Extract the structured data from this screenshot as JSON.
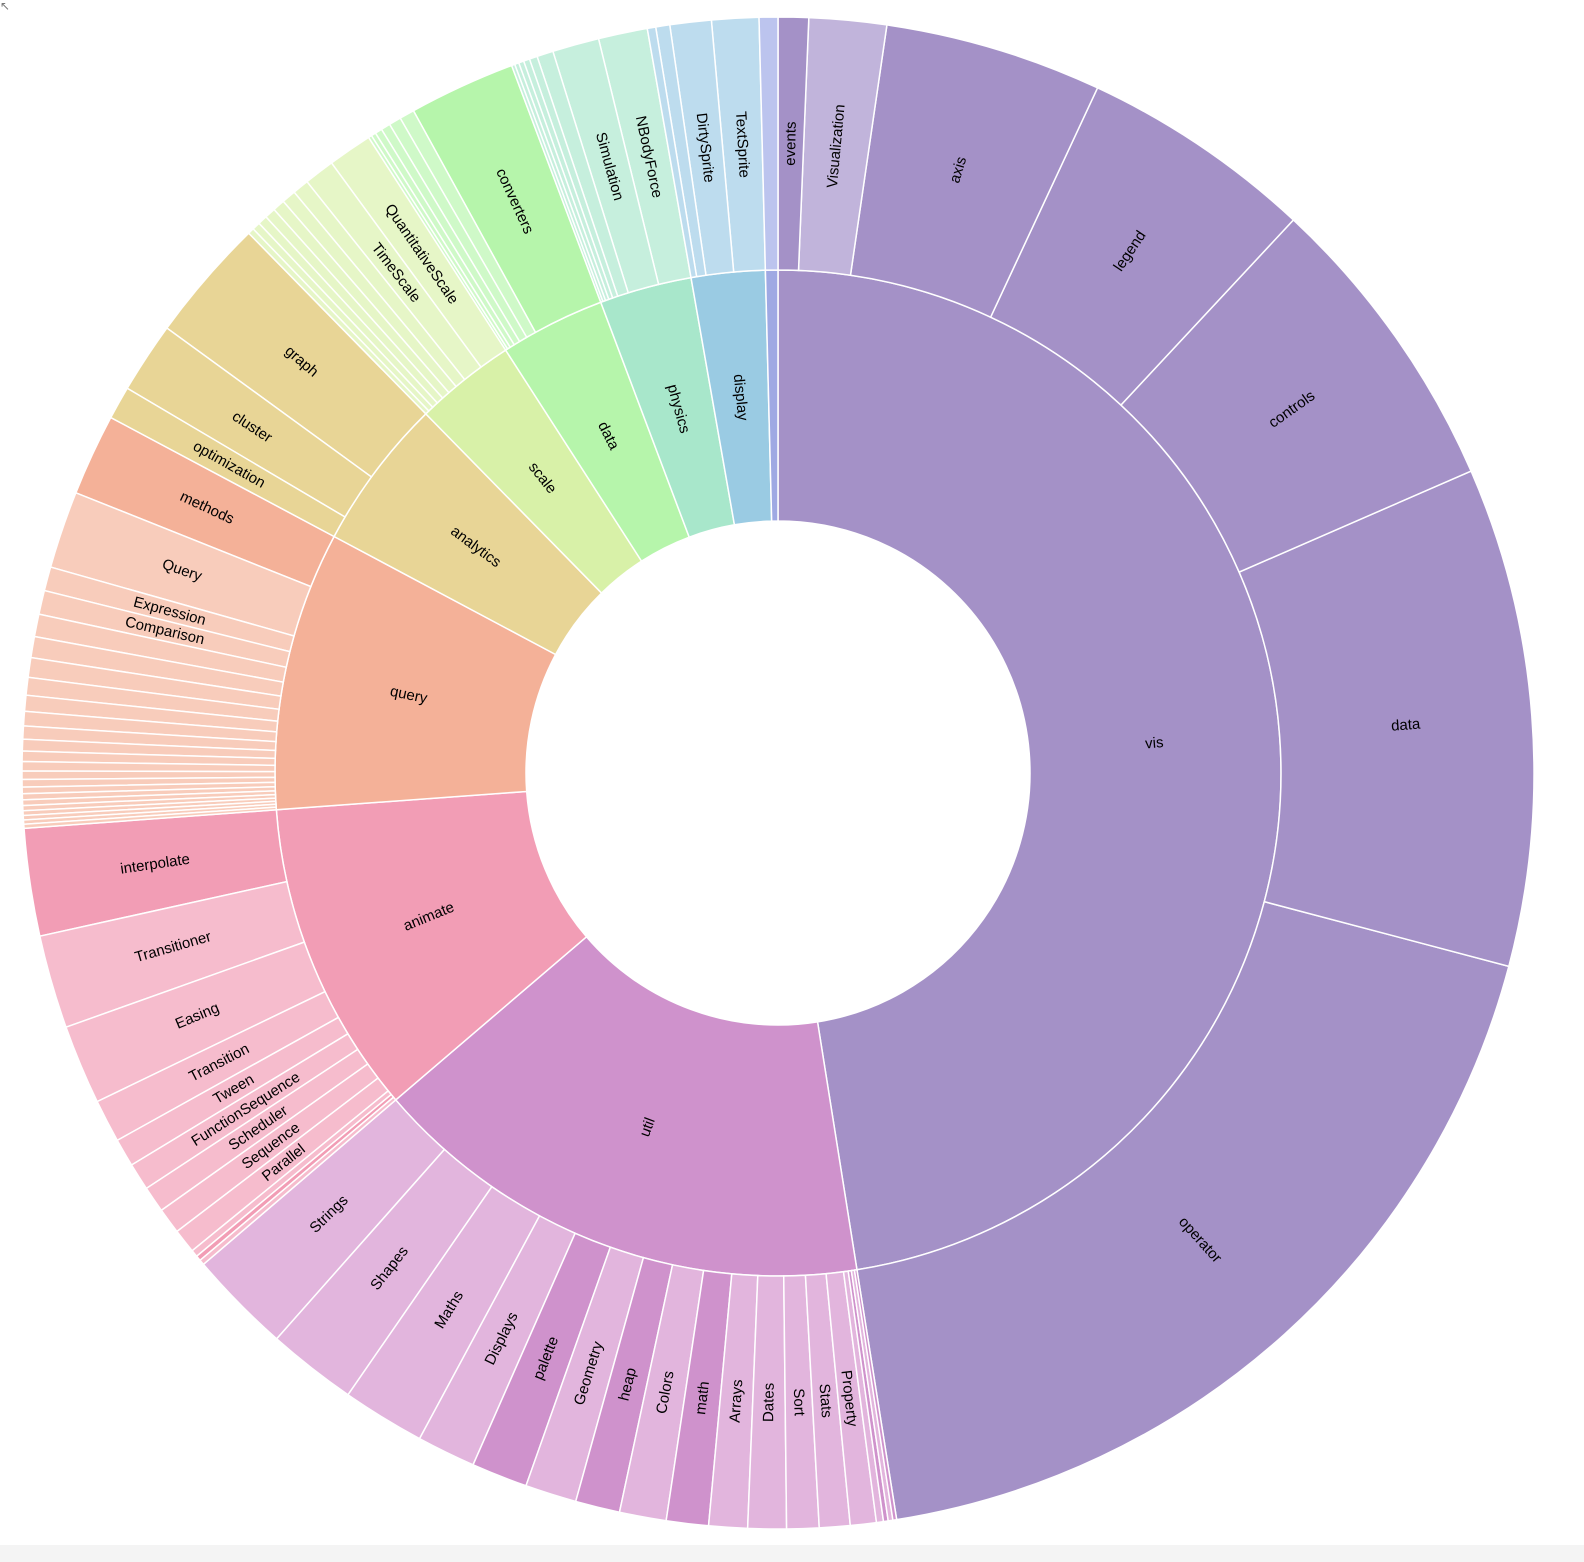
{
  "chart_data": {
    "type": "sunburst",
    "title": "",
    "children": [
      {
        "name": "vis",
        "color": "#a491c7",
        "children": [
          {
            "name": "operator",
            "value": 183967,
            "color": "#a491c7"
          },
          {
            "name": "data",
            "value": 106680,
            "color": "#a491c7"
          },
          {
            "name": "controls",
            "value": 65292,
            "color": "#a491c7"
          },
          {
            "name": "legend",
            "value": 50000,
            "color": "#a491c7"
          },
          {
            "name": "axis",
            "value": 46500,
            "color": "#a491c7"
          },
          {
            "name": "Visualization",
            "value": 16540,
            "color": "#c1b4db"
          },
          {
            "name": "events",
            "value": 6500,
            "color": "#a491c7"
          }
        ]
      },
      {
        "name": "util",
        "color": "#cf92cc",
        "children": [
          {
            "name": "Strings",
            "value": 22026,
            "color": "#e2b5dd"
          },
          {
            "name": "Shapes",
            "value": 19118,
            "color": "#e2b5dd"
          },
          {
            "name": "Maths",
            "value": 17705,
            "color": "#e2b5dd"
          },
          {
            "name": "Displays",
            "value": 12555,
            "color": "#e2b5dd"
          },
          {
            "name": "palette",
            "value": 12000,
            "color": "#cf92cc"
          },
          {
            "name": "Geometry",
            "value": 10993,
            "color": "#e2b5dd"
          },
          {
            "name": "heap",
            "value": 9500,
            "color": "#cf92cc"
          },
          {
            "name": "Colors",
            "value": 10001,
            "color": "#e2b5dd"
          },
          {
            "name": "math",
            "value": 9000,
            "color": "#cf92cc"
          },
          {
            "name": "Arrays",
            "value": 8258,
            "color": "#e2b5dd"
          },
          {
            "name": "Dates",
            "value": 8217,
            "color": "#e2b5dd"
          },
          {
            "name": "Sort",
            "value": 6887,
            "color": "#e2b5dd"
          },
          {
            "name": "Stats",
            "value": 6557,
            "color": "#e2b5dd"
          },
          {
            "name": "Property",
            "value": 5559,
            "color": "#e2b5dd"
          },
          {
            "name": "",
            "value": 1500,
            "color": "#e2b5dd"
          },
          {
            "name": "",
            "value": 1000,
            "color": "#cf92cc"
          },
          {
            "name": "",
            "value": 1000,
            "color": "#e2b5dd"
          },
          {
            "name": "",
            "value": 800,
            "color": "#cf92cc"
          }
        ]
      },
      {
        "name": "animate",
        "color": "#f29db5",
        "children": [
          {
            "name": "interpolate",
            "value": 23000,
            "color": "#f29db5"
          },
          {
            "name": "Transitioner",
            "value": 19975,
            "color": "#f6bccd"
          },
          {
            "name": "Easing",
            "value": 17010,
            "color": "#f6bccd"
          },
          {
            "name": "Transition",
            "value": 9201,
            "color": "#f6bccd"
          },
          {
            "name": "Tween",
            "value": 6006,
            "color": "#f6bccd"
          },
          {
            "name": "FunctionSequence",
            "value": 5842,
            "color": "#f6bccd"
          },
          {
            "name": "Scheduler",
            "value": 5593,
            "color": "#f6bccd"
          },
          {
            "name": "Sequence",
            "value": 5534,
            "color": "#f6bccd"
          },
          {
            "name": "Parallel",
            "value": 5176,
            "color": "#f6bccd"
          },
          {
            "name": "",
            "value": 1500,
            "color": "#f6bccd"
          },
          {
            "name": "",
            "value": 1116,
            "color": "#f29db5"
          },
          {
            "name": "",
            "value": 1116,
            "color": "#f6bccd"
          }
        ]
      },
      {
        "name": "query",
        "color": "#f4b198",
        "children": [
          {
            "name": "methods",
            "value": 17500,
            "color": "#f4b198"
          },
          {
            "name": "Query",
            "value": 16540,
            "color": "#f8ccbb"
          },
          {
            "name": "Expression",
            "value": 5130,
            "color": "#f8ccbb"
          },
          {
            "name": "Comparison",
            "value": 5103,
            "color": "#f8ccbb"
          },
          {
            "name": "",
            "value": 4800,
            "color": "#f8ccbb"
          },
          {
            "name": "",
            "value": 4500,
            "color": "#f8ccbb"
          },
          {
            "name": "",
            "value": 4200,
            "color": "#f8ccbb"
          },
          {
            "name": "",
            "value": 3800,
            "color": "#f8ccbb"
          },
          {
            "name": "",
            "value": 3400,
            "color": "#f8ccbb"
          },
          {
            "name": "",
            "value": 3100,
            "color": "#f8ccbb"
          },
          {
            "name": "",
            "value": 2800,
            "color": "#f8ccbb"
          },
          {
            "name": "",
            "value": 2500,
            "color": "#f8ccbb"
          },
          {
            "name": "",
            "value": 2200,
            "color": "#f8ccbb"
          },
          {
            "name": "",
            "value": 2000,
            "color": "#f8ccbb"
          },
          {
            "name": "",
            "value": 1800,
            "color": "#f8ccbb"
          },
          {
            "name": "",
            "value": 1600,
            "color": "#f8ccbb"
          },
          {
            "name": "",
            "value": 1400,
            "color": "#f8ccbb"
          },
          {
            "name": "",
            "value": 1300,
            "color": "#f8ccbb"
          },
          {
            "name": "",
            "value": 1200,
            "color": "#f8ccbb"
          },
          {
            "name": "",
            "value": 1100,
            "color": "#f8ccbb"
          },
          {
            "name": "",
            "value": 1000,
            "color": "#f8ccbb"
          },
          {
            "name": "",
            "value": 950,
            "color": "#f8ccbb"
          },
          {
            "name": "",
            "value": 900,
            "color": "#f8ccbb"
          },
          {
            "name": "",
            "value": 850,
            "color": "#f8ccbb"
          }
        ]
      },
      {
        "name": "analytics",
        "color": "#e8d596",
        "children": [
          {
            "name": "graph",
            "value": 26435,
            "color": "#e8d596"
          },
          {
            "name": "cluster",
            "value": 15207,
            "color": "#e8d596"
          },
          {
            "name": "optimization",
            "value": 7074,
            "color": "#e8d596"
          }
        ]
      },
      {
        "name": "scale",
        "color": "#d8f1a8",
        "children": [
          {
            "name": "QuantitativeScale",
            "value": 9500,
            "color": "#e6f6c7"
          },
          {
            "name": "TimeScale",
            "value": 6500,
            "color": "#e6f6c7"
          },
          {
            "name": "",
            "value": 3500,
            "color": "#e6f6c7"
          },
          {
            "name": "",
            "value": 3000,
            "color": "#e6f6c7"
          },
          {
            "name": "",
            "value": 2600,
            "color": "#e6f6c7"
          },
          {
            "name": "",
            "value": 2300,
            "color": "#e6f6c7"
          },
          {
            "name": "",
            "value": 2000,
            "color": "#e6f6c7"
          },
          {
            "name": "",
            "value": 1700,
            "color": "#e6f6c7"
          },
          {
            "name": "",
            "value": 1300,
            "color": "#e6f6c7"
          }
        ]
      },
      {
        "name": "data",
        "color": "#b6f5ab",
        "children": [
          {
            "name": "converters",
            "value": 22800,
            "color": "#b6f5ab"
          },
          {
            "name": "",
            "value": 3200,
            "color": "#cff9c8"
          },
          {
            "name": "",
            "value": 2600,
            "color": "#cff9c8"
          },
          {
            "name": "",
            "value": 2000,
            "color": "#cff9c8"
          },
          {
            "name": "",
            "value": 1500,
            "color": "#cff9c8"
          },
          {
            "name": "",
            "value": 1000,
            "color": "#cff9c8"
          },
          {
            "name": "",
            "value": 700,
            "color": "#cff9c8"
          }
        ]
      },
      {
        "name": "physics",
        "color": "#a8e7cb",
        "children": [
          {
            "name": "NBodyForce",
            "value": 10498,
            "color": "#c6efdd"
          },
          {
            "name": "Simulation",
            "value": 9983,
            "color": "#c6efdd"
          },
          {
            "name": "",
            "value": 3500,
            "color": "#c6efdd"
          },
          {
            "name": "",
            "value": 1700,
            "color": "#c6efdd"
          },
          {
            "name": "",
            "value": 1300,
            "color": "#c6efdd"
          },
          {
            "name": "",
            "value": 1100,
            "color": "#c6efdd"
          },
          {
            "name": "",
            "value": 900,
            "color": "#c6efdd"
          },
          {
            "name": "",
            "value": 700,
            "color": "#c6efdd"
          }
        ]
      },
      {
        "name": "display",
        "color": "#9acbe3",
        "children": [
          {
            "name": "TextSprite",
            "value": 10066,
            "color": "#bddcee"
          },
          {
            "name": "DirtySprite",
            "value": 8833,
            "color": "#bddcee"
          },
          {
            "name": "",
            "value": 3000,
            "color": "#bddcee"
          },
          {
            "name": "",
            "value": 1800,
            "color": "#bddcee"
          }
        ]
      },
      {
        "name": "",
        "color": "#9fa9e3",
        "children": [
          {
            "name": "",
            "value": 4000,
            "color": "#bcc4ee"
          }
        ]
      }
    ]
  }
}
